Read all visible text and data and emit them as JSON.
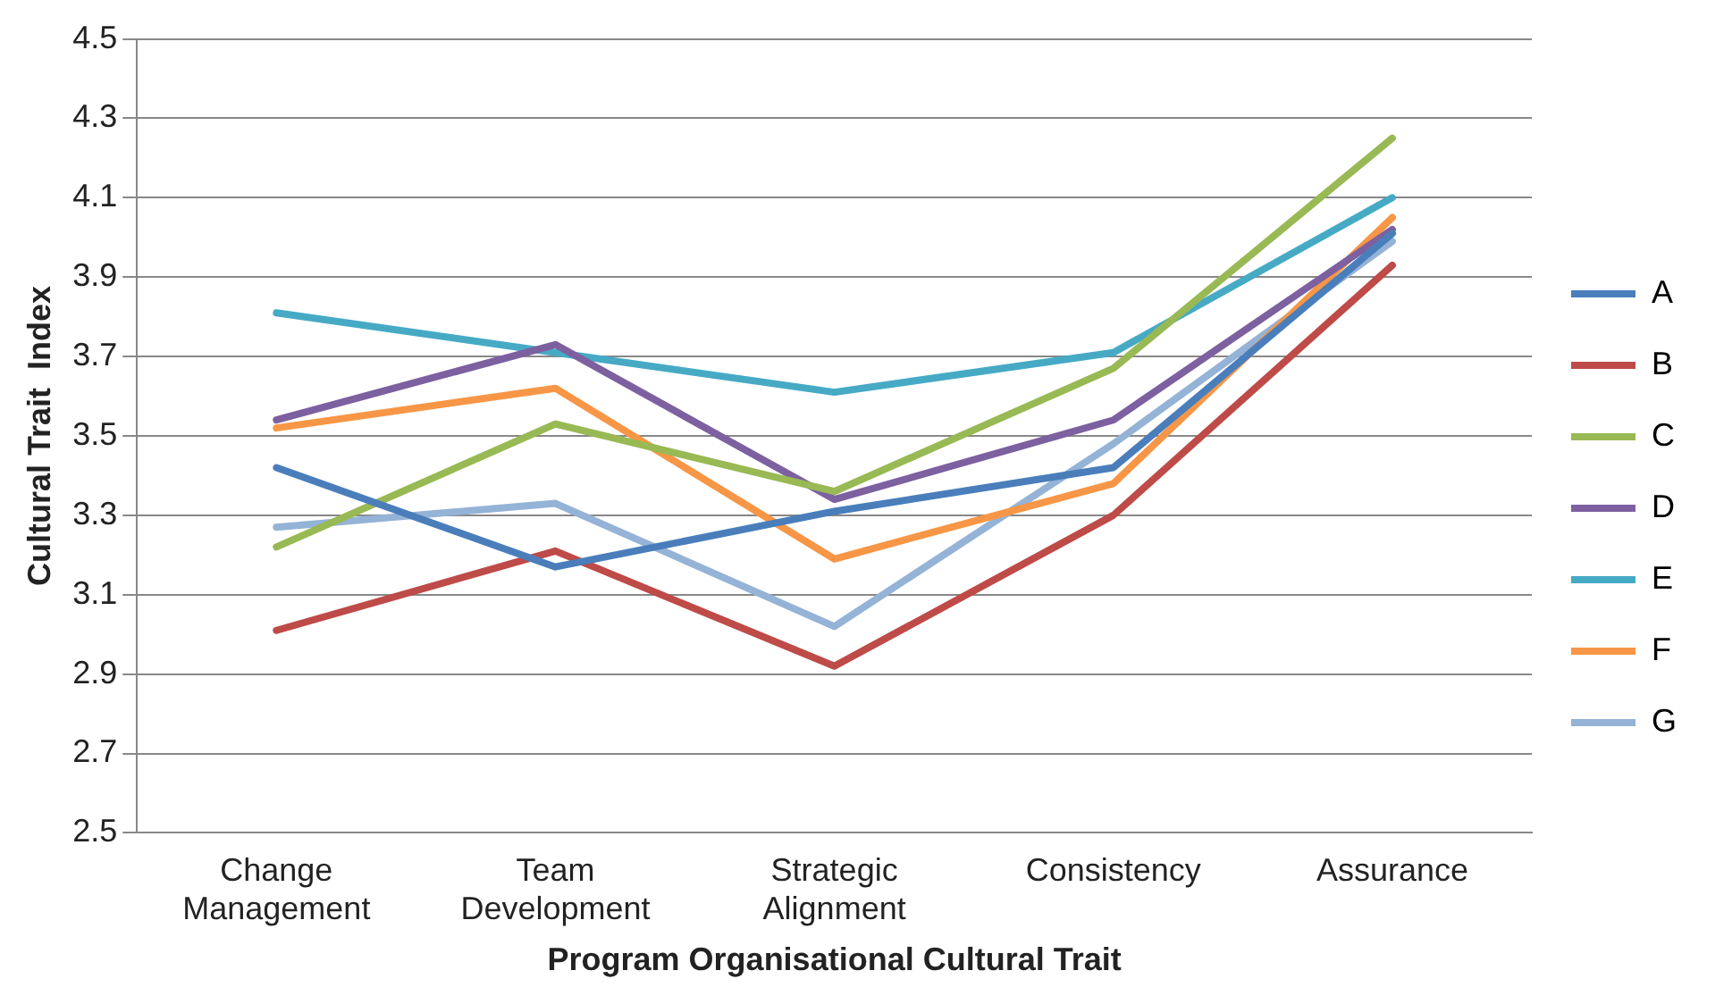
{
  "chart_data": {
    "type": "line",
    "xlabel": "Program Organisational Cultural Trait",
    "ylabel": "Cultural Trait  Index",
    "categories": [
      "Change Management",
      "Team Development",
      "Strategic Alignment",
      "Consistency",
      "Assurance"
    ],
    "series": [
      {
        "name": "A",
        "color": "#4a7ebb",
        "values": [
          3.42,
          3.17,
          3.31,
          3.42,
          4.01
        ]
      },
      {
        "name": "B",
        "color": "#be4b48",
        "values": [
          3.01,
          3.21,
          2.92,
          3.3,
          3.93
        ]
      },
      {
        "name": "C",
        "color": "#98b954",
        "values": [
          3.22,
          3.53,
          3.36,
          3.67,
          4.25
        ]
      },
      {
        "name": "D",
        "color": "#7d60a0",
        "values": [
          3.54,
          3.73,
          3.34,
          3.54,
          4.02
        ]
      },
      {
        "name": "E",
        "color": "#46aac5",
        "values": [
          3.81,
          3.71,
          3.61,
          3.71,
          4.1
        ]
      },
      {
        "name": "F",
        "color": "#f79646",
        "values": [
          3.52,
          3.62,
          3.19,
          3.38,
          4.05
        ]
      },
      {
        "name": "G",
        "color": "#94b3d6",
        "values": [
          3.27,
          3.33,
          3.02,
          3.48,
          3.99
        ]
      }
    ],
    "ylim": [
      2.5,
      4.5
    ],
    "yticks": [
      2.5,
      2.7,
      2.9,
      3.1,
      3.3,
      3.5,
      3.7,
      3.9,
      4.1,
      4.3,
      4.5
    ],
    "grid": "y",
    "legend": "right",
    "marker": "none",
    "line_style": "solid"
  }
}
